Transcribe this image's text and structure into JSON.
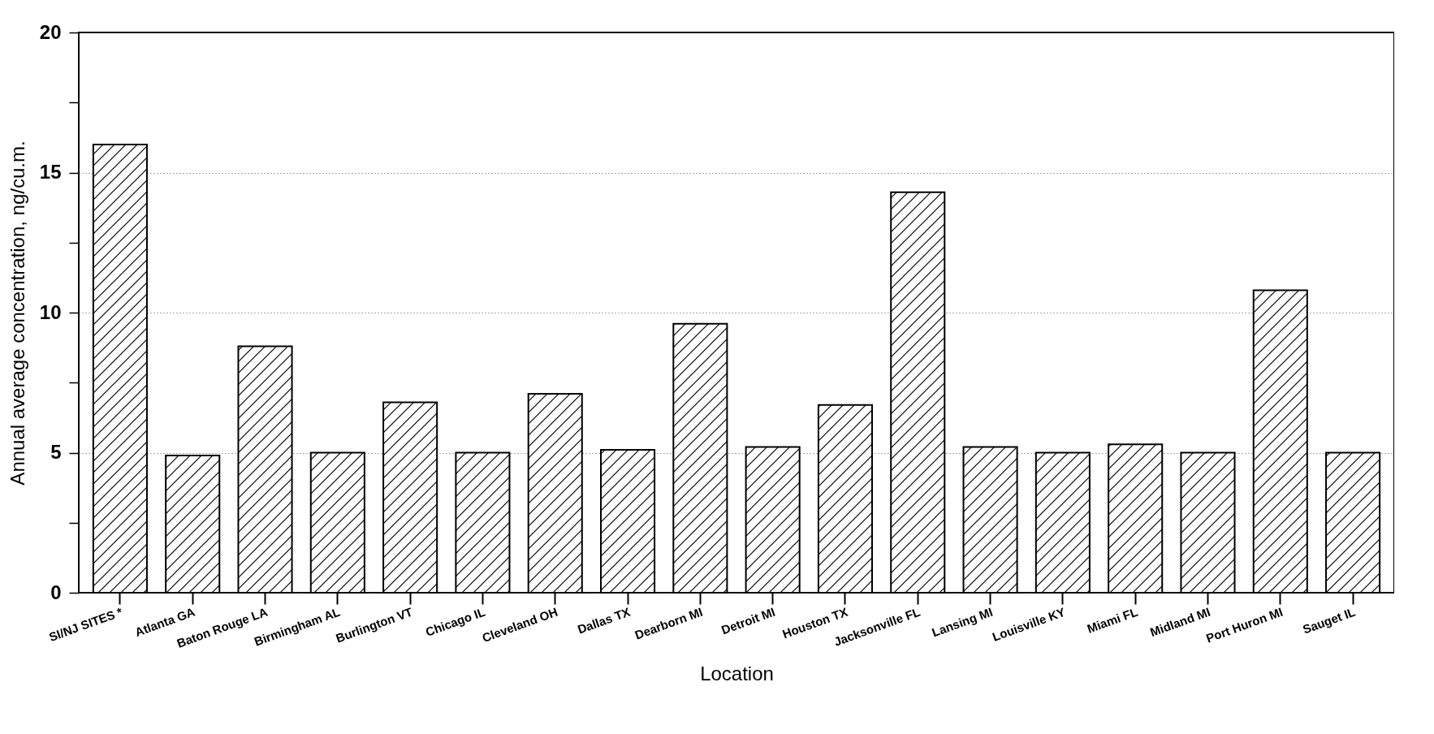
{
  "chart_data": {
    "type": "bar",
    "xlabel": "Location",
    "ylabel": "Annual average concentration, ng/cu.m.",
    "categories": [
      "SI/NJ SITES *",
      "Atlanta GA",
      "Baton Rouge LA",
      "Birmingham AL",
      "Burlington VT",
      "Chicago IL",
      "Cleveland OH",
      "Dallas TX",
      "Dearborn MI",
      "Detroit MI",
      "Houston TX",
      "Jacksonville FL",
      "Lansing MI",
      "Louisville KY",
      "Miami FL",
      "Midland MI",
      "Port Huron MI",
      "Sauget IL"
    ],
    "values": [
      16.0,
      4.9,
      8.8,
      5.0,
      6.8,
      5.0,
      7.1,
      5.1,
      9.6,
      5.2,
      6.7,
      14.3,
      5.2,
      5.0,
      5.3,
      5.0,
      10.8,
      5.0
    ],
    "color": "#000000",
    "ylim": [
      0,
      20
    ],
    "yticks": [
      0,
      {
        "value": 2.5,
        "label": null
      },
      5,
      {
        "value": 7.5,
        "label": null
      },
      10,
      {
        "value": 12.5,
        "label": null
      },
      15,
      {
        "value": 17.5,
        "label": null
      },
      20
    ],
    "grid": "y"
  }
}
